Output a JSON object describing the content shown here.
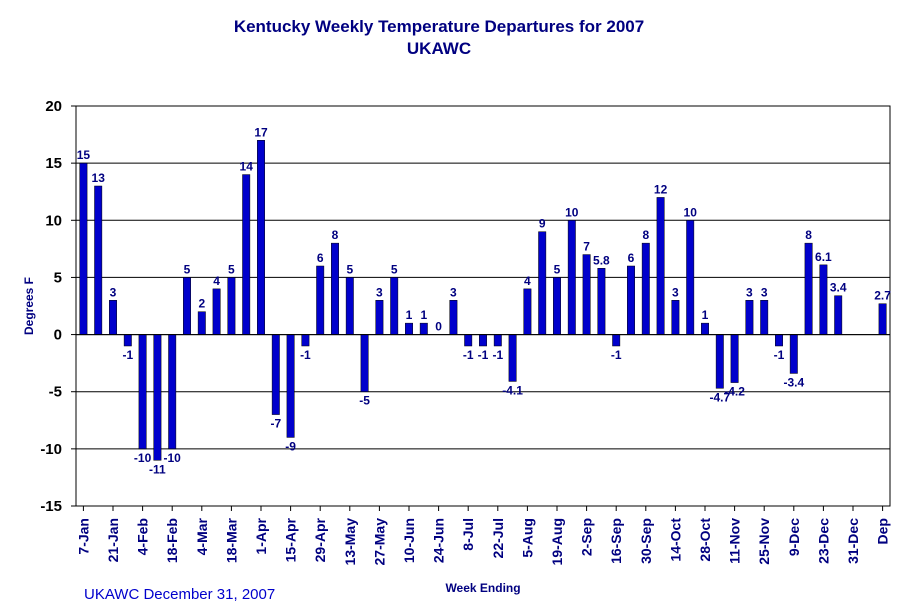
{
  "chart_data": {
    "type": "bar",
    "title": "Kentucky Weekly Temperature Departures for 2007",
    "subtitle": "UKAWC",
    "xlabel": "Week Ending",
    "ylabel": "Degrees F",
    "ylim": [
      -15,
      20
    ],
    "yticks": [
      20,
      15,
      10,
      5,
      0,
      -5,
      -10,
      -15
    ],
    "grid": true,
    "bar_color": "#0000cc",
    "tick_labels": [
      "7-Jan",
      "21-Jan",
      "4-Feb",
      "18-Feb",
      "4-Mar",
      "18-Mar",
      "1-Apr",
      "15-Apr",
      "29-Apr",
      "13-May",
      "27-May",
      "10-Jun",
      "24-Jun",
      "8-Jul",
      "22-Jul",
      "5-Aug",
      "19-Aug",
      "2-Sep",
      "16-Sep",
      "30-Sep",
      "14-Oct",
      "28-Oct",
      "11-Nov",
      "25-Nov",
      "9-Dec",
      "23-Dec",
      "31-Dec",
      "Dep"
    ],
    "values": [
      15,
      13,
      3,
      -1,
      -10,
      -11,
      -10,
      5,
      2,
      4,
      5,
      14,
      17,
      -7,
      -9,
      -1,
      6,
      8,
      5,
      -5,
      3,
      5,
      1,
      1,
      0,
      3,
      -1,
      -1,
      -1,
      -4.1,
      4,
      9,
      5,
      10,
      7,
      5.8,
      -1,
      6,
      8,
      12,
      3,
      10,
      1,
      -4.7,
      -4.2,
      3,
      3,
      -1,
      -3.4,
      8,
      6.1,
      3.4,
      null,
      null,
      2.7
    ],
    "labels": [
      "15",
      "13",
      "3",
      "-1",
      "-10",
      "-11",
      "-10",
      "5",
      "2",
      "4",
      "5",
      "14",
      "17",
      "-7",
      "-9",
      "-1",
      "6",
      "8",
      "5",
      "-5",
      "3",
      "5",
      "1",
      "1",
      "0",
      "3",
      "-1",
      "-1",
      "-1",
      "-4.1",
      "4",
      "9",
      "5",
      "10",
      "7",
      "5.8",
      "-1",
      "6",
      "8",
      "12",
      "3",
      "10",
      "1",
      "-4.7",
      "-4.2",
      "3",
      "3",
      "-1",
      "-3.4",
      "8",
      "6.1",
      "3.4",
      "",
      "",
      "2.7"
    ]
  },
  "footer": {
    "credit": "UKAWC December 31, 2007"
  }
}
